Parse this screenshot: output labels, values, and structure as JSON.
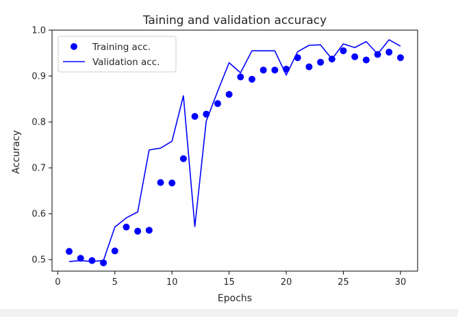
{
  "chart_data": {
    "type": "line",
    "title": "Taining and validation accuracy",
    "xlabel": "Epochs",
    "ylabel": "Accuracy",
    "xlim": [
      -0.5,
      31.5
    ],
    "ylim": [
      0.475,
      1.0
    ],
    "xticks": [
      0,
      5,
      10,
      15,
      20,
      25,
      30
    ],
    "yticks": [
      0.5,
      0.6,
      0.7,
      0.8,
      0.9,
      1.0
    ],
    "xtick_labels": [
      "0",
      "5",
      "10",
      "15",
      "20",
      "25",
      "30"
    ],
    "ytick_labels": [
      "0.5",
      "0.6",
      "0.7",
      "0.8",
      "0.9",
      "1.0"
    ],
    "grid": false,
    "legend_position": "top-left",
    "series": [
      {
        "name": "Training acc.",
        "style": "dots",
        "color": "#0000ff",
        "x": [
          1,
          2,
          3,
          4,
          5,
          6,
          7,
          8,
          9,
          10,
          11,
          12,
          13,
          14,
          15,
          16,
          17,
          18,
          19,
          20,
          21,
          22,
          23,
          24,
          25,
          26,
          27,
          28,
          29,
          30
        ],
        "y": [
          0.518,
          0.503,
          0.498,
          0.493,
          0.519,
          0.571,
          0.562,
          0.564,
          0.668,
          0.667,
          0.72,
          0.812,
          0.817,
          0.84,
          0.86,
          0.898,
          0.893,
          0.913,
          0.913,
          0.915,
          0.94,
          0.92,
          0.93,
          0.937,
          0.955,
          0.942,
          0.935,
          0.947,
          0.952,
          0.94
        ]
      },
      {
        "name": "Validation acc.",
        "style": "line",
        "color": "#0000ff",
        "x": [
          1,
          2,
          3,
          4,
          5,
          6,
          7,
          8,
          9,
          10,
          11,
          12,
          13,
          14,
          15,
          16,
          17,
          18,
          19,
          20,
          21,
          22,
          23,
          24,
          25,
          26,
          27,
          28,
          29,
          30
        ],
        "y": [
          0.496,
          0.498,
          0.496,
          0.498,
          0.571,
          0.591,
          0.604,
          0.739,
          0.743,
          0.758,
          0.857,
          0.572,
          0.802,
          0.867,
          0.929,
          0.907,
          0.955,
          0.955,
          0.955,
          0.902,
          0.953,
          0.967,
          0.968,
          0.937,
          0.97,
          0.962,
          0.975,
          0.948,
          0.979,
          0.965
        ]
      }
    ]
  }
}
